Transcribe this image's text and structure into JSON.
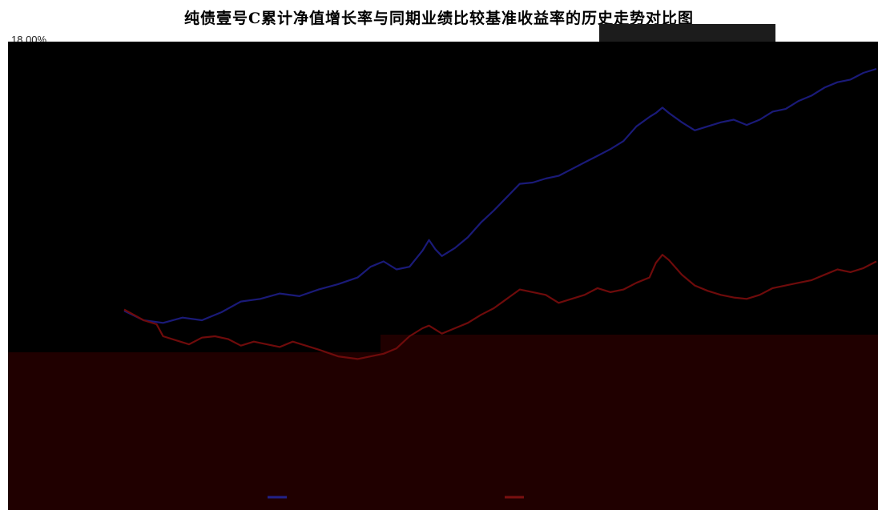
{
  "chart_data": {
    "type": "line",
    "title": "纯债壹号C累计净值增长率与同期业绩比较基准收益率的历史走势对比图",
    "y_top_label": "18.00%",
    "grid": false,
    "legend": "bottom",
    "colors": {
      "background_upper": "#000000",
      "background_lower": "#200000",
      "fund_line": "#1a1a78",
      "benchmark_line": "#6e0b0b",
      "legend_fund": "#22228a",
      "legend_benchmark": "#7a1010"
    },
    "series": [
      {
        "key": "fund",
        "values": [
          [
            0,
            0.7
          ],
          [
            3,
            0.0
          ],
          [
            6,
            -0.2
          ],
          [
            9,
            0.2
          ],
          [
            12,
            0.0
          ],
          [
            15,
            0.6
          ],
          [
            18,
            1.4
          ],
          [
            21,
            1.6
          ],
          [
            24,
            2.0
          ],
          [
            27,
            1.8
          ],
          [
            30,
            2.3
          ],
          [
            33,
            2.7
          ],
          [
            36,
            3.2
          ],
          [
            38,
            4.0
          ],
          [
            40,
            4.4
          ],
          [
            42,
            3.8
          ],
          [
            44,
            4.0
          ],
          [
            46,
            5.2
          ],
          [
            47,
            6.0
          ],
          [
            48,
            5.3
          ],
          [
            49,
            4.8
          ],
          [
            51,
            5.4
          ],
          [
            53,
            6.2
          ],
          [
            55,
            7.3
          ],
          [
            57,
            8.2
          ],
          [
            59,
            9.2
          ],
          [
            61,
            10.2
          ],
          [
            63,
            10.3
          ],
          [
            65,
            10.6
          ],
          [
            67,
            10.8
          ],
          [
            69,
            11.3
          ],
          [
            71,
            11.8
          ],
          [
            73,
            12.3
          ],
          [
            75,
            12.8
          ],
          [
            77,
            13.4
          ],
          [
            79,
            14.5
          ],
          [
            81,
            15.2
          ],
          [
            82,
            15.5
          ],
          [
            83,
            15.9
          ],
          [
            84,
            15.5
          ],
          [
            86,
            14.8
          ],
          [
            88,
            14.2
          ],
          [
            90,
            14.5
          ],
          [
            92,
            14.8
          ],
          [
            94,
            15.0
          ],
          [
            96,
            14.6
          ],
          [
            98,
            15.0
          ],
          [
            100,
            15.6
          ],
          [
            102,
            15.8
          ],
          [
            104,
            16.4
          ],
          [
            106,
            16.8
          ],
          [
            108,
            17.4
          ],
          [
            110,
            17.8
          ],
          [
            112,
            18.0
          ],
          [
            114,
            18.5
          ],
          [
            116,
            18.8
          ]
        ]
      },
      {
        "key": "benchmark",
        "values": [
          [
            0,
            0.8
          ],
          [
            3,
            0.0
          ],
          [
            5,
            -0.3
          ],
          [
            6,
            -1.2
          ],
          [
            8,
            -1.5
          ],
          [
            10,
            -1.8
          ],
          [
            12,
            -1.3
          ],
          [
            14,
            -1.2
          ],
          [
            16,
            -1.4
          ],
          [
            18,
            -1.9
          ],
          [
            20,
            -1.6
          ],
          [
            22,
            -1.8
          ],
          [
            24,
            -2.0
          ],
          [
            26,
            -1.6
          ],
          [
            28,
            -1.9
          ],
          [
            30,
            -2.2
          ],
          [
            33,
            -2.7
          ],
          [
            36,
            -2.9
          ],
          [
            40,
            -2.5
          ],
          [
            42,
            -2.1
          ],
          [
            44,
            -1.2
          ],
          [
            46,
            -0.6
          ],
          [
            47,
            -0.4
          ],
          [
            48,
            -0.7
          ],
          [
            49,
            -1.0
          ],
          [
            51,
            -0.6
          ],
          [
            53,
            -0.2
          ],
          [
            55,
            0.4
          ],
          [
            57,
            0.9
          ],
          [
            59,
            1.6
          ],
          [
            61,
            2.3
          ],
          [
            63,
            2.1
          ],
          [
            65,
            1.9
          ],
          [
            67,
            1.3
          ],
          [
            69,
            1.6
          ],
          [
            71,
            1.9
          ],
          [
            73,
            2.4
          ],
          [
            75,
            2.1
          ],
          [
            77,
            2.3
          ],
          [
            79,
            2.8
          ],
          [
            81,
            3.2
          ],
          [
            82,
            4.3
          ],
          [
            83,
            4.9
          ],
          [
            84,
            4.5
          ],
          [
            86,
            3.4
          ],
          [
            88,
            2.6
          ],
          [
            90,
            2.2
          ],
          [
            92,
            1.9
          ],
          [
            94,
            1.7
          ],
          [
            96,
            1.6
          ],
          [
            98,
            1.9
          ],
          [
            100,
            2.4
          ],
          [
            102,
            2.6
          ],
          [
            104,
            2.8
          ],
          [
            106,
            3.0
          ],
          [
            108,
            3.4
          ],
          [
            110,
            3.8
          ],
          [
            112,
            3.6
          ],
          [
            114,
            3.9
          ],
          [
            116,
            4.4
          ]
        ]
      }
    ]
  }
}
